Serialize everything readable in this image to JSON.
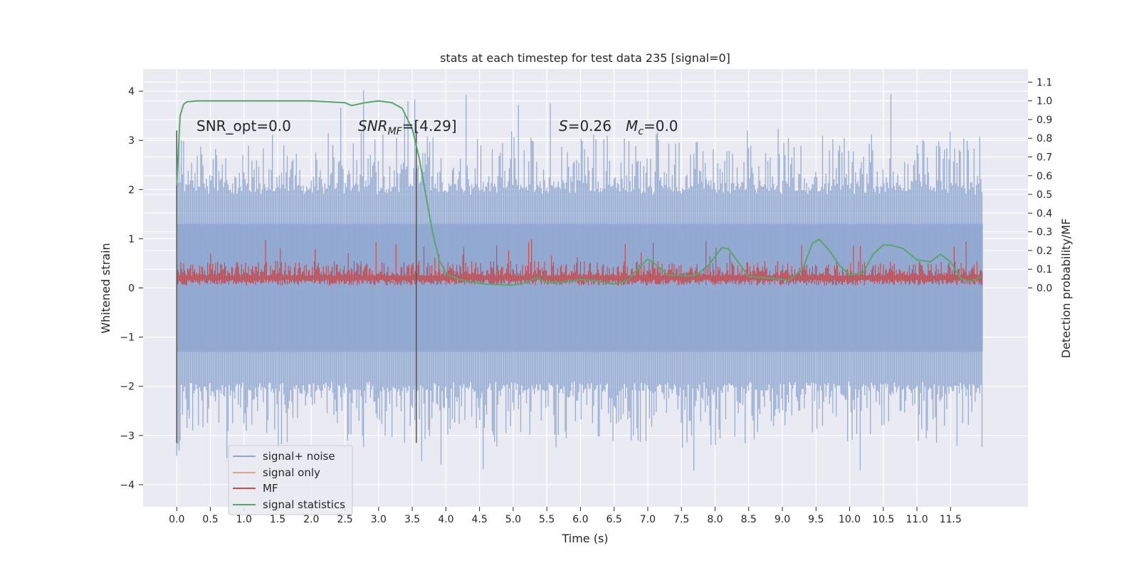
{
  "chart_data": {
    "type": "line",
    "title": "stats at each timestep for test data 235 [signal=0]",
    "xlabel": "Time (s)",
    "ylabel": "Whitened strain",
    "ylabel_right": "Detection probability/MF",
    "xlim": [
      -0.5,
      12.65
    ],
    "ylim": [
      -4.45,
      4.45
    ],
    "ylim_right": [
      -1.17,
      1.17
    ],
    "x_ticks": [
      "0.0",
      "0.5",
      "1.0",
      "1.5",
      "2.0",
      "2.5",
      "3.0",
      "3.5",
      "4.0",
      "4.5",
      "5.0",
      "5.5",
      "6.0",
      "6.5",
      "7.0",
      "7.5",
      "8.0",
      "8.5",
      "9.0",
      "9.5",
      "10.0",
      "10.5",
      "11.0",
      "11.5"
    ],
    "y_ticks": [
      "4",
      "3",
      "2",
      "1",
      "0",
      "−1",
      "−2",
      "−3",
      "−4"
    ],
    "y_ticks_right": [
      "1.1",
      "1.0",
      "0.9",
      "0.8",
      "0.7",
      "0.6",
      "0.5",
      "0.4",
      "0.3",
      "0.2",
      "0.1",
      "0.0"
    ],
    "grid": true,
    "legend_placement": "lower-left",
    "annotations": {
      "snr_opt": "SNR_opt=0.0",
      "snr_mf_sym": "SNR",
      "snr_mf_sub": "MF",
      "snr_mf_rest": "=[4.29]",
      "s_sym": "S",
      "s_rest": "=0.26",
      "mc_sym": "M",
      "mc_sub": "c",
      "mc_rest": "=0.0"
    },
    "vertical_lines_x": [
      0.0,
      3.56
    ],
    "series": [
      {
        "name": "signal+ noise",
        "color": "#8fa6cf",
        "envelope": {
          "x_range": [
            0.0,
            11.98
          ],
          "typical_max": 2.5,
          "typical_min": -2.3,
          "peak_max": 4.1,
          "peak_min": -4.0
        }
      },
      {
        "name": "signal only",
        "color": "#e6a38a",
        "values": []
      },
      {
        "name": "MF",
        "color": "#c44e52",
        "envelope": {
          "x_range": [
            0.0,
            11.98
          ],
          "typical_max": 0.55,
          "typical_min": 0.05,
          "peak_max": 1.0
        }
      },
      {
        "name": "signal statistics",
        "color": "#55a868",
        "axis": "right",
        "x": [
          0.0,
          0.05,
          0.1,
          0.15,
          0.3,
          0.6,
          1.0,
          1.5,
          2.0,
          2.5,
          2.6,
          2.8,
          3.0,
          3.2,
          3.35,
          3.5,
          3.6,
          3.7,
          3.8,
          3.9,
          4.0,
          4.1,
          4.2,
          4.4,
          4.6,
          5.0,
          5.2,
          5.35,
          5.5,
          5.7,
          6.0,
          6.2,
          6.5,
          6.7,
          6.85,
          7.0,
          7.1,
          7.3,
          7.5,
          7.7,
          7.9,
          8.1,
          8.2,
          8.3,
          8.5,
          8.7,
          8.9,
          9.1,
          9.3,
          9.45,
          9.55,
          9.7,
          9.85,
          10.0,
          10.2,
          10.35,
          10.5,
          10.6,
          10.8,
          11.0,
          11.2,
          11.35,
          11.5,
          11.65,
          11.8,
          11.95
        ],
        "y": [
          0.55,
          0.92,
          0.98,
          0.995,
          1.0,
          1.0,
          1.0,
          1.0,
          1.0,
          0.99,
          0.975,
          0.99,
          1.0,
          0.99,
          0.96,
          0.85,
          0.7,
          0.5,
          0.3,
          0.15,
          0.08,
          0.06,
          0.045,
          0.03,
          0.02,
          0.015,
          0.03,
          0.055,
          0.03,
          0.03,
          0.045,
          0.04,
          0.02,
          0.04,
          0.1,
          0.155,
          0.13,
          0.07,
          0.065,
          0.065,
          0.12,
          0.215,
          0.21,
          0.16,
          0.06,
          0.055,
          0.05,
          0.04,
          0.1,
          0.24,
          0.26,
          0.2,
          0.12,
          0.07,
          0.08,
          0.18,
          0.23,
          0.23,
          0.21,
          0.15,
          0.14,
          0.18,
          0.14,
          0.05,
          0.035,
          0.06
        ]
      }
    ]
  }
}
